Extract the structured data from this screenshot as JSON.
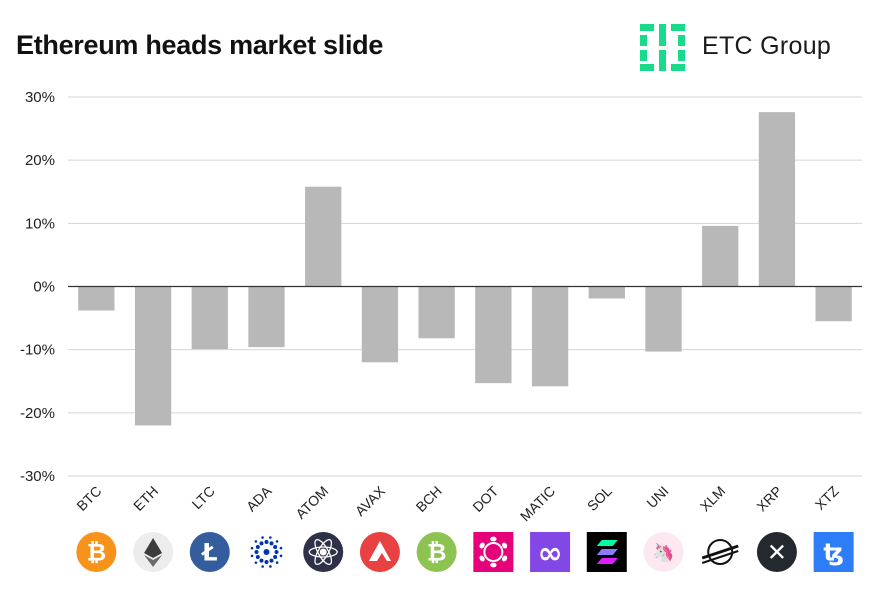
{
  "header": {
    "title": "Ethereum heads market slide",
    "brand_name": "ETC Group",
    "brand_color": "#19d98b"
  },
  "chart_data": {
    "type": "bar",
    "categories": [
      "BTC",
      "ETH",
      "LTC",
      "ADA",
      "ATOM",
      "AVAX",
      "BCH",
      "DOT",
      "MATIC",
      "SOL",
      "UNI",
      "XLM",
      "XRP",
      "XTZ"
    ],
    "values": [
      -3.8,
      -22.0,
      -9.9,
      -9.6,
      15.8,
      -12.0,
      -8.2,
      -15.3,
      -15.8,
      -1.9,
      -10.3,
      9.6,
      27.6,
      -5.5
    ],
    "ylim": [
      -30,
      30
    ],
    "yticks": [
      30,
      20,
      10,
      0,
      -10,
      -20,
      -30
    ],
    "ytick_labels": [
      "30%",
      "20%",
      "10%",
      "0%",
      "-10%",
      "-20%",
      "-30%"
    ],
    "grid": true,
    "bar_color": "#b8b8b8",
    "xlabel": "",
    "ylabel": ""
  },
  "coin_icons": [
    {
      "name": "bitcoin-icon",
      "color": "#f7931a",
      "glyph": "₿",
      "shape": "circle"
    },
    {
      "name": "ethereum-icon",
      "color": "#ececec",
      "glyph": "eth",
      "shape": "circle"
    },
    {
      "name": "litecoin-icon",
      "color": "#345d9d",
      "glyph": "Ł",
      "shape": "circle"
    },
    {
      "name": "cardano-icon",
      "color": "#ffffff",
      "glyph": "ada",
      "shape": "circle"
    },
    {
      "name": "cosmos-icon",
      "color": "#2e3148",
      "glyph": "atom",
      "shape": "circle"
    },
    {
      "name": "avalanche-icon",
      "color": "#e84142",
      "glyph": "avax",
      "shape": "circle"
    },
    {
      "name": "bitcoin-cash-icon",
      "color": "#8dc351",
      "glyph": "₿",
      "shape": "circle"
    },
    {
      "name": "polkadot-icon",
      "color": "#e6007a",
      "glyph": "dot",
      "shape": "square"
    },
    {
      "name": "polygon-icon",
      "color": "#8247e5",
      "glyph": "∞",
      "shape": "square"
    },
    {
      "name": "solana-icon",
      "color": "#000000",
      "glyph": "sol",
      "shape": "square"
    },
    {
      "name": "uniswap-icon",
      "color": "#fde7f1",
      "glyph": "🦄",
      "shape": "circle"
    },
    {
      "name": "stellar-icon",
      "color": "#ffffff",
      "glyph": "xlm",
      "shape": "circle"
    },
    {
      "name": "xrp-icon",
      "color": "#23292f",
      "glyph": "✕",
      "shape": "circle"
    },
    {
      "name": "tezos-icon",
      "color": "#2c7df7",
      "glyph": "ꜩ",
      "shape": "square"
    }
  ]
}
